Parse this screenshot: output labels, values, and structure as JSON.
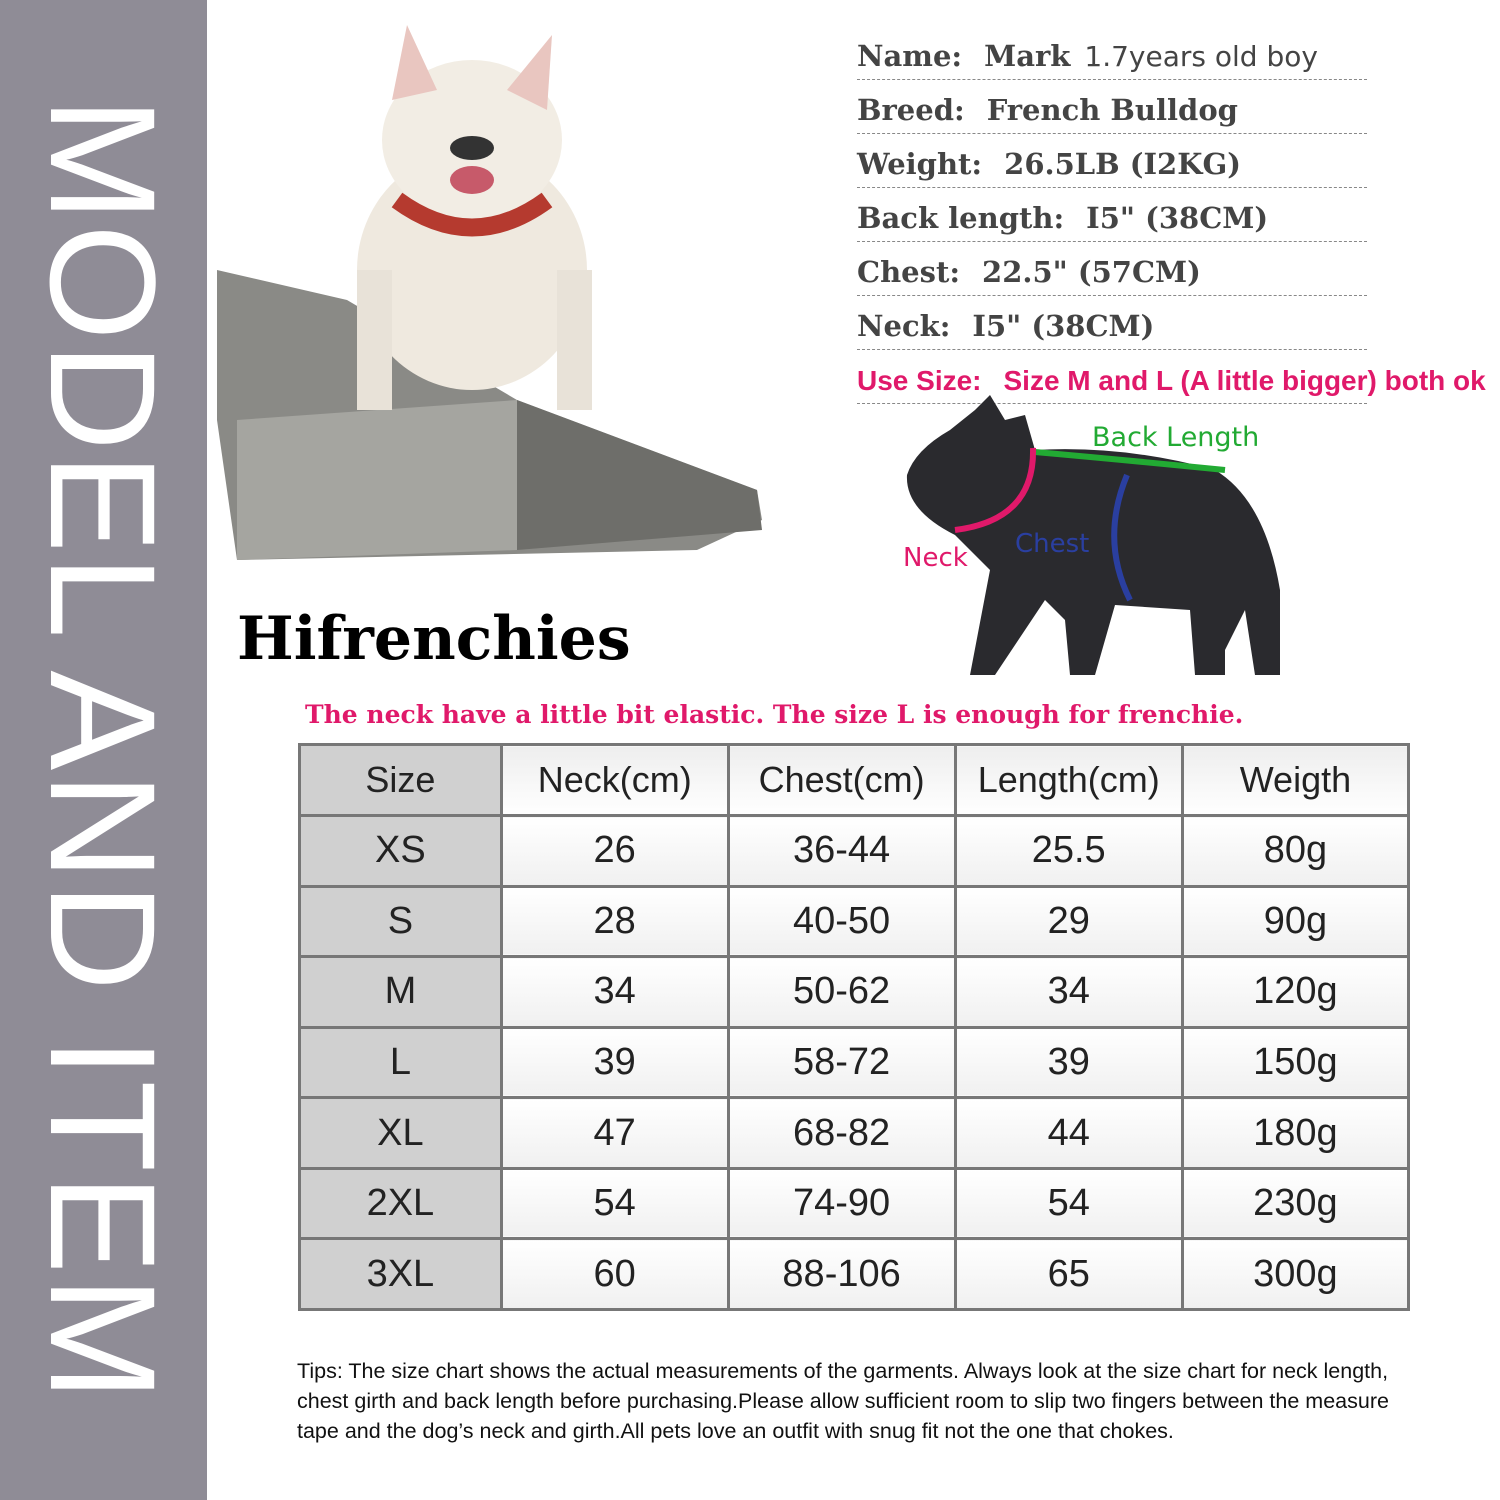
{
  "side_title": "MODEL AND ITEM",
  "model": {
    "rows": [
      {
        "label": "Name:",
        "value": "Mark",
        "extra": "1.7years old boy"
      },
      {
        "label": "Breed:",
        "value": "French Bulldog"
      },
      {
        "label": "Weight:",
        "value": "26.5LB (I2KG)"
      },
      {
        "label": "Back length:",
        "value": "I5\"  (38CM)"
      },
      {
        "label": "Chest:",
        "value": "22.5\"  (57CM)"
      },
      {
        "label": "Neck:",
        "value": "I5\"  (38CM)"
      }
    ],
    "use_size": {
      "label": "Use Size:",
      "value": "Size M and L (A little bigger) both ok"
    }
  },
  "diagram": {
    "back": "Back Length",
    "neck": "Neck",
    "chest": "Chest",
    "colors": {
      "back": "#22aa33",
      "neck": "#e0196a",
      "chest": "#2a3fa0"
    }
  },
  "brand": "Hifrenchies",
  "note": "The neck have a little bit elastic. The size L is enough for frenchie.",
  "table": {
    "headers": [
      "Size",
      "Neck(cm)",
      "Chest(cm)",
      "Length(cm)",
      "Weigth"
    ],
    "rows": [
      [
        "XS",
        "26",
        "36-44",
        "25.5",
        "80g"
      ],
      [
        "S",
        "28",
        "40-50",
        "29",
        "90g"
      ],
      [
        "M",
        "34",
        "50-62",
        "34",
        "120g"
      ],
      [
        "L",
        "39",
        "58-72",
        "39",
        "150g"
      ],
      [
        "XL",
        "47",
        "68-82",
        "44",
        "180g"
      ],
      [
        "2XL",
        "54",
        "74-90",
        "54",
        "230g"
      ],
      [
        "3XL",
        "60",
        "88-106",
        "65",
        "300g"
      ]
    ]
  },
  "tips": "Tips:  The size chart shows the actual measurements of the  garments.  Always look at the size chart for neck length, chest girth and back length before purchasing.Please allow sufficient room to slip two fingers between the measure tape and the dog’s neck and girth.All pets love an outfit with snug fit not the one that chokes."
}
